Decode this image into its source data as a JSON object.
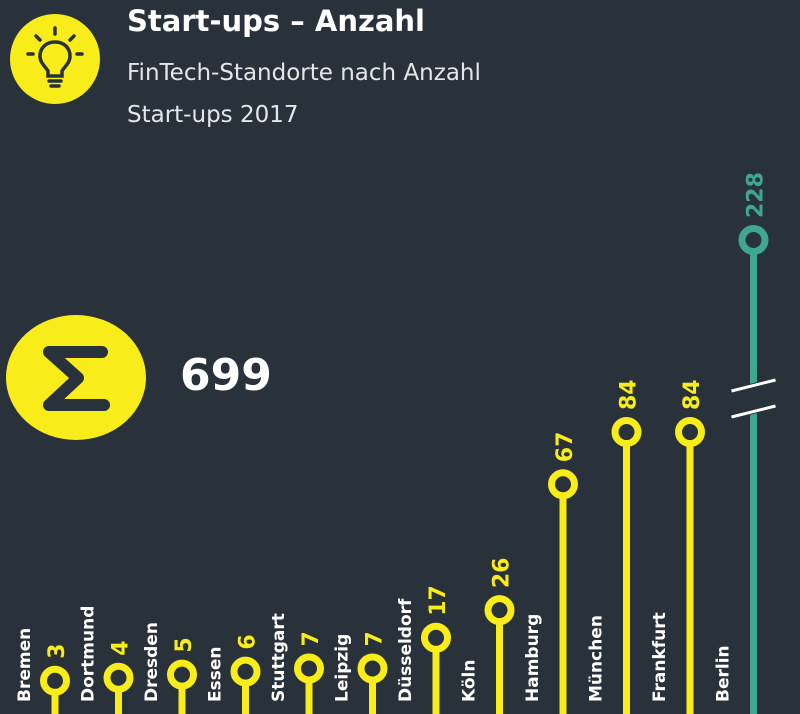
{
  "header": {
    "title": "Start-ups – Anzahl",
    "subtitle_line1": "FinTech-Standorte nach Anzahl",
    "subtitle_line2": "Start-ups 2017"
  },
  "summary": {
    "total": "699"
  },
  "colors": {
    "background": "#29323a",
    "accent": "#f8ec1b",
    "highlight": "#3fa78f",
    "text": "#ffffff"
  },
  "icons": [
    "lightbulb-icon",
    "sigma-icon"
  ],
  "chart_data": {
    "type": "lollipop",
    "categories": [
      "Bremen",
      "Dortmund",
      "Dresden",
      "Essen",
      "Stuttgart",
      "Leipzig",
      "Düsseldorf",
      "Köln",
      "Hamburg",
      "München",
      "Frankfurt",
      "Berlin"
    ],
    "values": [
      3,
      4,
      5,
      6,
      7,
      7,
      17,
      26,
      67,
      84,
      84,
      228
    ],
    "highlight": "Berlin",
    "axis_break": true
  }
}
